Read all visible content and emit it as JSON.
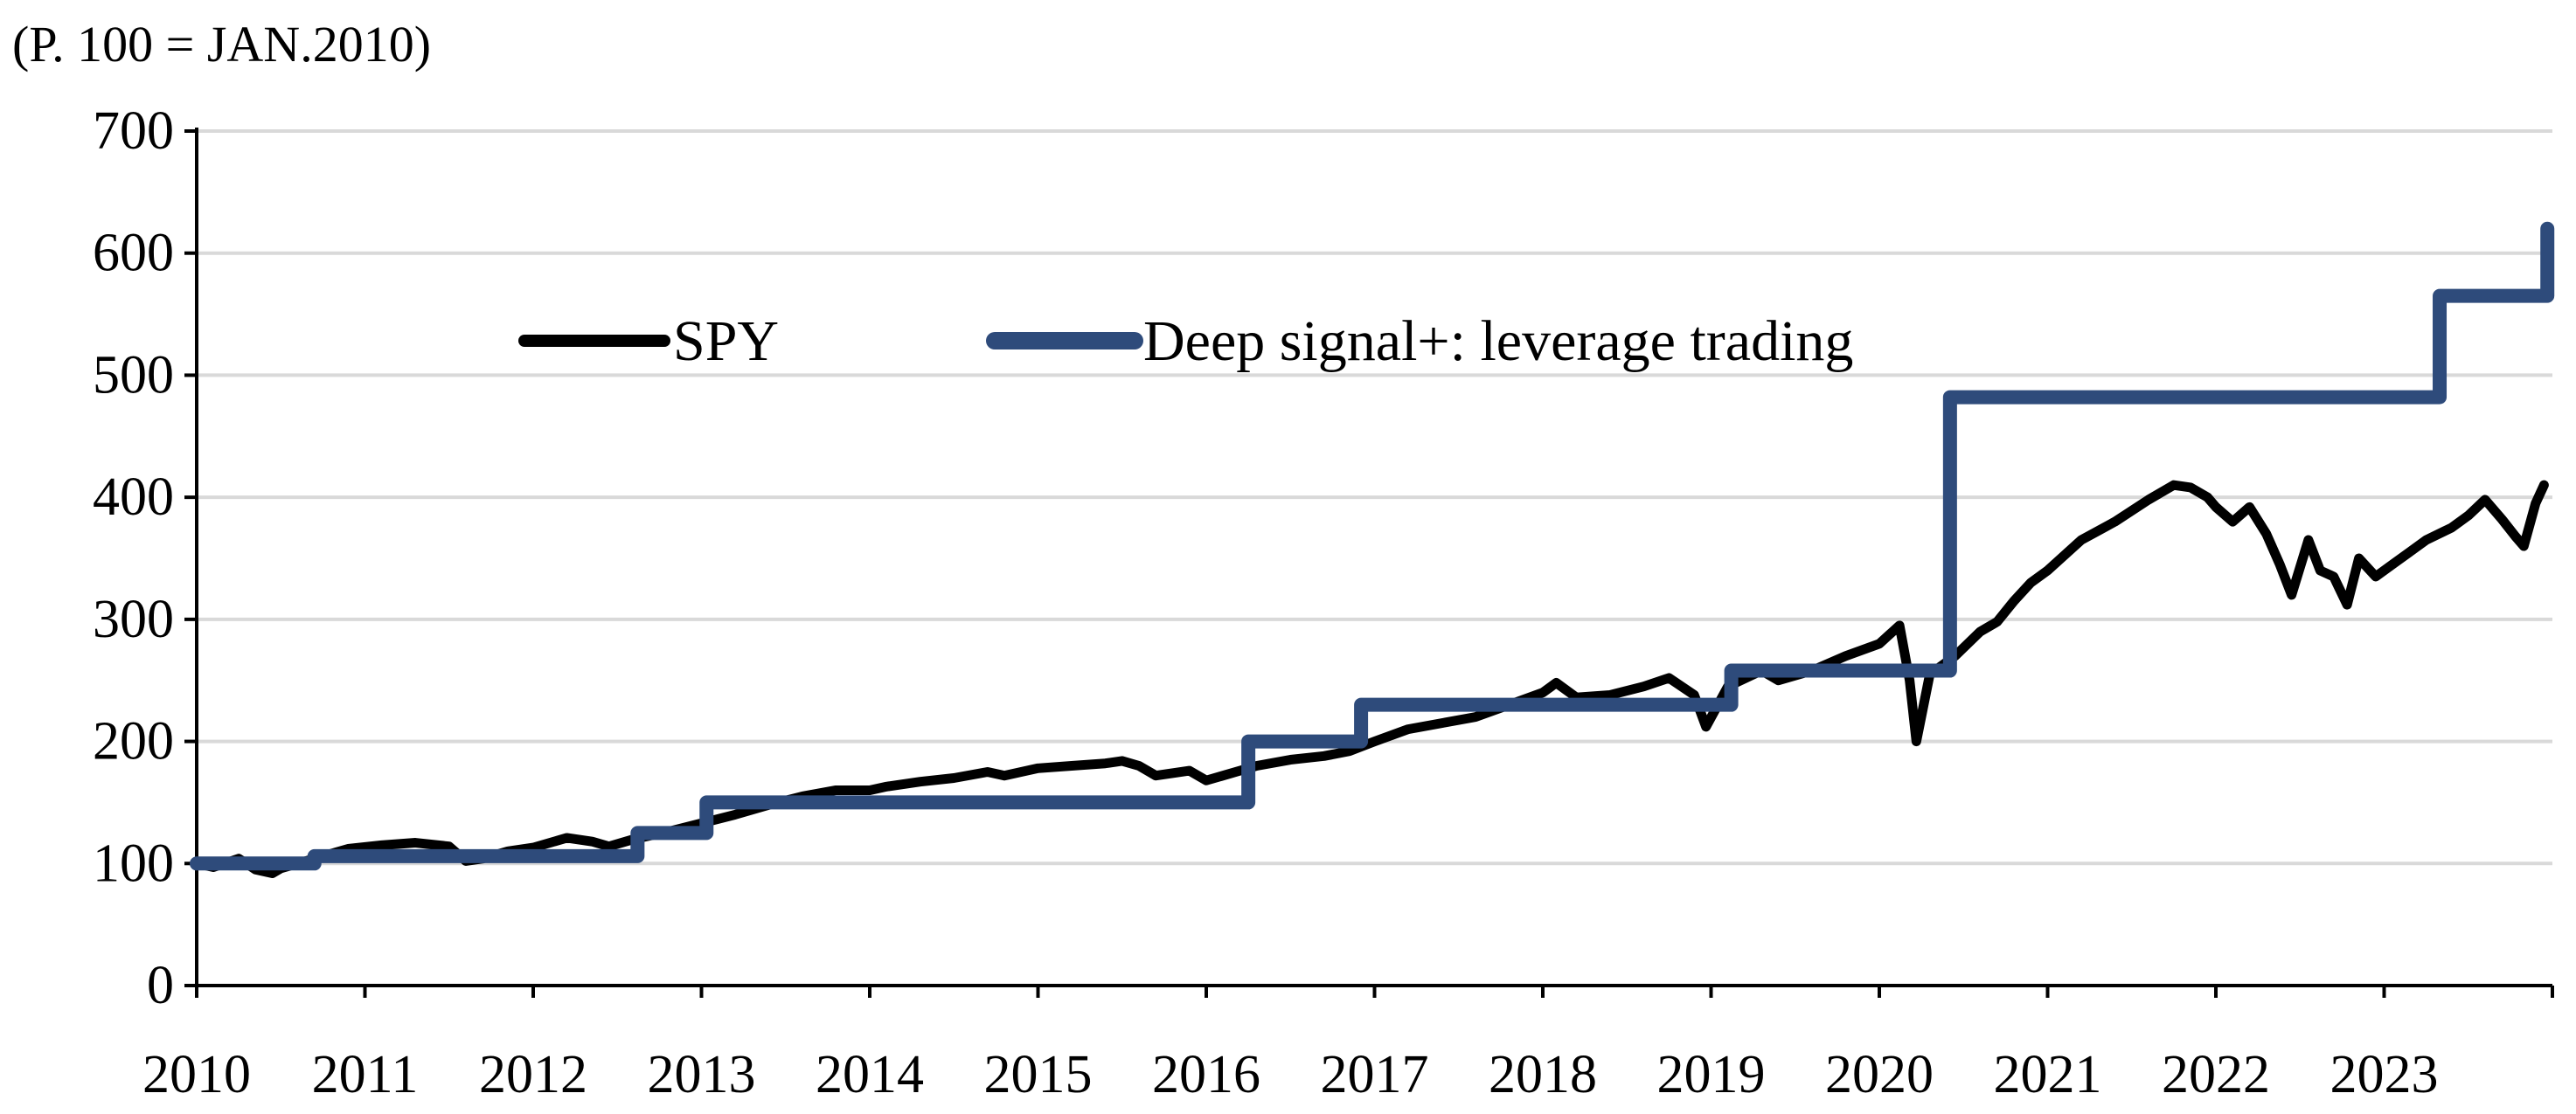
{
  "chart_data": {
    "type": "line",
    "unit_label": "(P. 100 = JAN.2010)",
    "title": "",
    "xlabel": "",
    "ylabel": "",
    "xlim": [
      2010,
      2024
    ],
    "ylim": [
      0,
      700
    ],
    "y_ticks": [
      0,
      100,
      200,
      300,
      400,
      500,
      600,
      700
    ],
    "y_tick_labels": [
      "0",
      "100",
      "200",
      "300",
      "400",
      "500",
      "600",
      "700"
    ],
    "x_ticks": [
      2010,
      2011,
      2012,
      2013,
      2014,
      2015,
      2016,
      2017,
      2018,
      2019,
      2020,
      2021,
      2022,
      2023
    ],
    "x_tick_labels": [
      "2010",
      "2011",
      "2012",
      "2013",
      "2014",
      "2015",
      "2016",
      "2017",
      "2018",
      "2019",
      "2020",
      "2021",
      "2022",
      "2023"
    ],
    "grid": true,
    "legend_position": "top-center",
    "series": [
      {
        "name": "SPY",
        "color": "#000000",
        "style": "line",
        "x": [
          2010.0,
          2010.1,
          2010.25,
          2010.35,
          2010.45,
          2010.5,
          2010.6,
          2010.75,
          2010.9,
          2011.1,
          2011.3,
          2011.5,
          2011.6,
          2011.7,
          2011.85,
          2012.0,
          2012.2,
          2012.35,
          2012.45,
          2012.6,
          2012.8,
          2013.0,
          2013.2,
          2013.4,
          2013.6,
          2013.8,
          2014.0,
          2014.1,
          2014.3,
          2014.5,
          2014.7,
          2014.8,
          2015.0,
          2015.2,
          2015.4,
          2015.5,
          2015.6,
          2015.7,
          2015.9,
          2016.0,
          2016.1,
          2016.3,
          2016.5,
          2016.7,
          2016.85,
          2017.0,
          2017.2,
          2017.4,
          2017.6,
          2017.8,
          2018.0,
          2018.08,
          2018.2,
          2018.4,
          2018.6,
          2018.75,
          2018.9,
          2018.97,
          2019.1,
          2019.3,
          2019.4,
          2019.6,
          2019.8,
          2020.0,
          2020.12,
          2020.18,
          2020.22,
          2020.3,
          2020.45,
          2020.6,
          2020.7,
          2020.8,
          2020.9,
          2021.0,
          2021.2,
          2021.4,
          2021.6,
          2021.75,
          2021.85,
          2021.95,
          2022.0,
          2022.1,
          2022.2,
          2022.3,
          2022.38,
          2022.45,
          2022.55,
          2022.62,
          2022.7,
          2022.78,
          2022.85,
          2022.95,
          2023.05,
          2023.15,
          2023.25,
          2023.4,
          2023.5,
          2023.6,
          2023.7,
          2023.78,
          2023.83,
          2023.9,
          2023.95
        ],
        "y": [
          100,
          97,
          104,
          95,
          92,
          96,
          100,
          106,
          112,
          115,
          117,
          114,
          102,
          104,
          110,
          113,
          121,
          118,
          114,
          120,
          126,
          133,
          140,
          148,
          155,
          160,
          160,
          163,
          167,
          170,
          175,
          172,
          178,
          180,
          182,
          184,
          180,
          172,
          176,
          168,
          172,
          180,
          185,
          188,
          192,
          200,
          210,
          215,
          220,
          230,
          240,
          248,
          236,
          238,
          245,
          252,
          238,
          212,
          245,
          258,
          250,
          258,
          270,
          280,
          295,
          250,
          200,
          255,
          270,
          290,
          298,
          315,
          330,
          340,
          365,
          380,
          398,
          410,
          408,
          400,
          392,
          380,
          392,
          370,
          345,
          320,
          365,
          340,
          335,
          312,
          350,
          335,
          345,
          355,
          365,
          375,
          385,
          398,
          382,
          368,
          360,
          395,
          410
        ]
      },
      {
        "name": "Deep signal+: leverage trading",
        "color": "#2e4b7b",
        "style": "step",
        "x": [
          2010.0,
          2010.7,
          2012.62,
          2013.03,
          2016.25,
          2016.92,
          2019.12,
          2020.42,
          2023.33,
          2023.93,
          2023.97
        ],
        "y": [
          100,
          106,
          125,
          150,
          200,
          230,
          258,
          482,
          565,
          565,
          620
        ]
      }
    ]
  }
}
